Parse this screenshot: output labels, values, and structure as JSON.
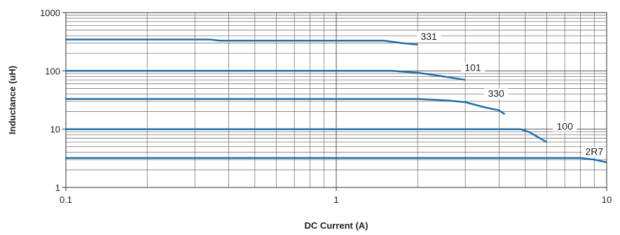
{
  "chart_data": {
    "type": "line",
    "title": "",
    "xlabel": "DC Current (A)",
    "ylabel": "Inductance (uH)",
    "x_scale": "log",
    "y_scale": "log",
    "xlim": [
      0.1,
      10
    ],
    "ylim": [
      1,
      1000
    ],
    "grid": true,
    "legend": "inline labels",
    "x_ticks": [
      {
        "value": 0.1,
        "label": "0.1"
      },
      {
        "value": 1,
        "label": "1"
      },
      {
        "value": 10,
        "label": "10"
      }
    ],
    "y_ticks": [
      {
        "value": 1,
        "label": "1"
      },
      {
        "value": 10,
        "label": "10"
      },
      {
        "value": 100,
        "label": "100"
      },
      {
        "value": 1000,
        "label": "1000"
      }
    ],
    "line_color": "#1f6fa8",
    "series": [
      {
        "name": "331",
        "label_at": [
          2.2,
          340
        ],
        "points": [
          [
            0.1,
            345
          ],
          [
            0.34,
            345
          ],
          [
            0.37,
            330
          ],
          [
            1.5,
            330
          ],
          [
            1.75,
            300
          ],
          [
            2.0,
            282
          ]
        ]
      },
      {
        "name": "101",
        "label_at": [
          3.2,
          100
        ],
        "points": [
          [
            0.1,
            100
          ],
          [
            1.6,
            100
          ],
          [
            2.0,
            93
          ],
          [
            2.5,
            80
          ],
          [
            3.0,
            70
          ]
        ]
      },
      {
        "name": "330",
        "label_at": [
          3.9,
          36
        ],
        "points": [
          [
            0.1,
            33
          ],
          [
            2.0,
            33
          ],
          [
            2.6,
            31
          ],
          [
            3.0,
            29
          ],
          [
            3.5,
            24
          ],
          [
            4.0,
            21
          ],
          [
            4.2,
            18
          ]
        ]
      },
      {
        "name": "100",
        "label_at": [
          7.0,
          9.8
        ],
        "points": [
          [
            0.1,
            10
          ],
          [
            4.8,
            10
          ],
          [
            5.2,
            8.8
          ],
          [
            5.6,
            7.2
          ],
          [
            6.0,
            6.0
          ]
        ]
      },
      {
        "name": "2R7",
        "label_at": [
          9.0,
          3.6
        ],
        "points": [
          [
            0.1,
            3.2
          ],
          [
            8.0,
            3.2
          ],
          [
            9.0,
            3.0
          ],
          [
            10.0,
            2.7
          ]
        ]
      }
    ]
  }
}
